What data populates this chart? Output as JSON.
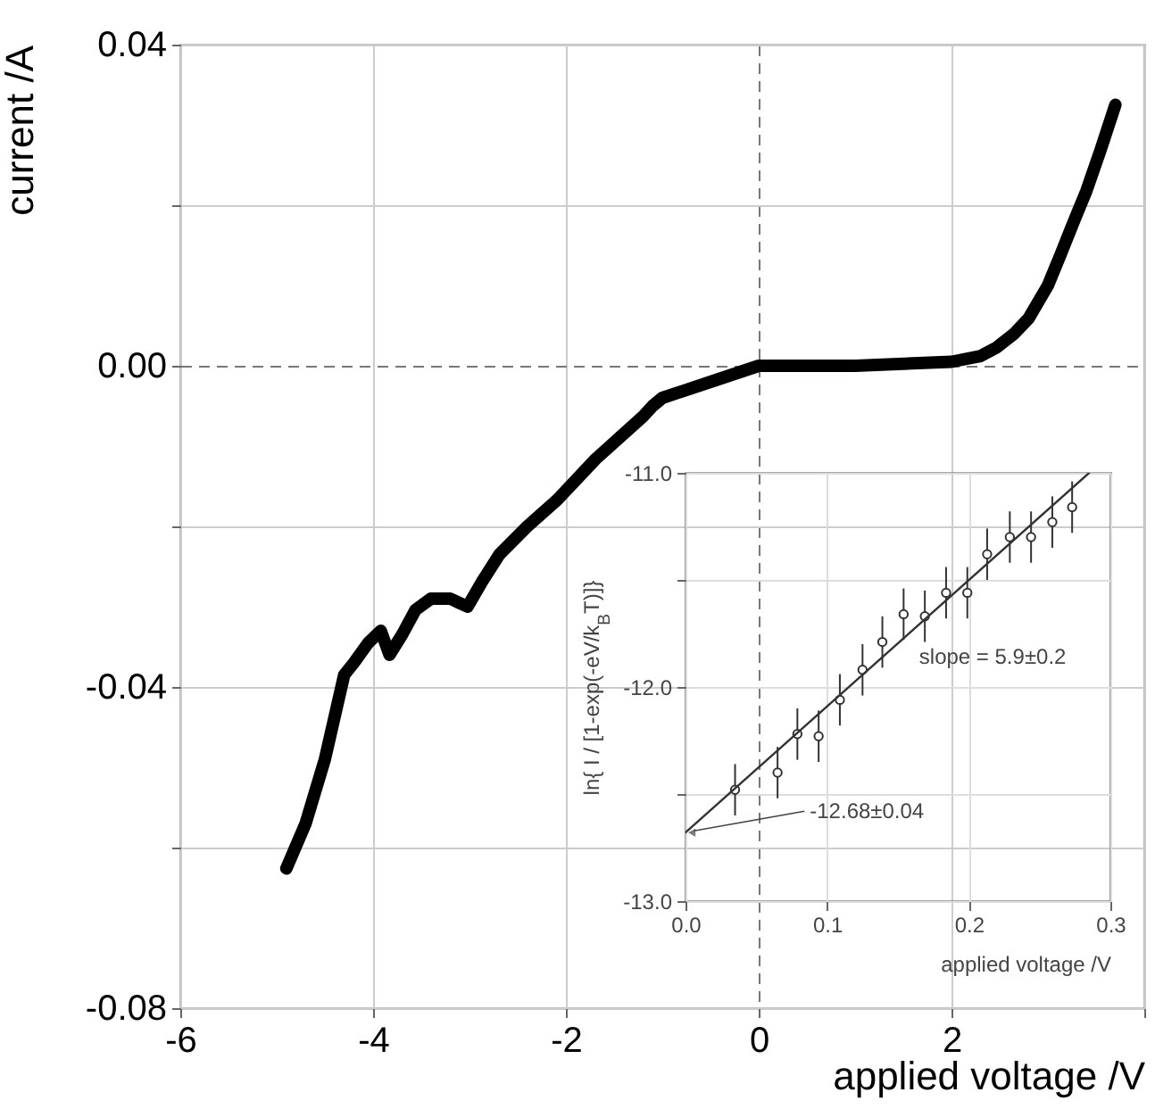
{
  "chart_data": [
    {
      "type": "line",
      "xlabel": "applied voltage /V",
      "ylabel": "current /A",
      "xlim": [
        -6,
        4
      ],
      "xticks": [
        -6,
        -4,
        -2,
        0,
        2,
        {
          "value": 4,
          "label": null
        }
      ],
      "ylim": [
        -0.08,
        0.04
      ],
      "yticks": [
        {
          "value": -0.08,
          "label": "-0.08"
        },
        {
          "value": -0.06,
          "label": null
        },
        {
          "value": -0.04,
          "label": "-0.04"
        },
        {
          "value": -0.02,
          "label": null
        },
        {
          "value": 0,
          "label": "0.00"
        },
        {
          "value": 0.02,
          "label": null
        },
        {
          "value": 0.04,
          "label": "0.04"
        }
      ],
      "grid": true,
      "x": [
        -4.9,
        -4.7,
        -4.5,
        -4.3,
        -4.2,
        -4.05,
        -3.92,
        -3.83,
        -3.7,
        -3.56,
        -3.4,
        -3.2,
        -3.02,
        -2.87,
        -2.69,
        -2.4,
        -2.09,
        -1.69,
        -1.2,
        -1.1,
        -1.0,
        -0.5,
        0,
        1,
        2,
        2.3,
        2.47,
        2.65,
        2.8,
        3.0,
        3.13,
        3.27,
        3.4,
        3.55,
        3.7
      ],
      "series": [
        {
          "color": "#000000",
          "values": [
            -0.0626,
            -0.057,
            -0.049,
            -0.0385,
            -0.037,
            -0.0345,
            -0.033,
            -0.036,
            -0.0335,
            -0.0304,
            -0.029,
            -0.029,
            -0.03,
            -0.0269,
            -0.0235,
            -0.02,
            -0.0167,
            -0.0116,
            -0.0063,
            -0.005,
            -0.004,
            -0.002,
            0,
            0,
            0.0005,
            0.0012,
            0.0023,
            0.004,
            0.0059,
            0.01,
            0.0138,
            0.018,
            0.0218,
            0.027,
            0.0325
          ]
        }
      ]
    },
    {
      "type": "scatter",
      "xlabel": "applied voltage /V",
      "ylabel": "ln{ I / [1-exp(-eV/k$_{B}$T)]}",
      "xlim": [
        0,
        0.3
      ],
      "xticks": [
        {
          "value": 0,
          "label": "0.0"
        },
        {
          "value": 0.1,
          "label": "0.1"
        },
        {
          "value": 0.2,
          "label": "0.2"
        },
        {
          "value": 0.3,
          "label": "0.3"
        }
      ],
      "ylim": [
        -13,
        -11
      ],
      "yticks": [
        {
          "value": -13,
          "label": "-13.0"
        },
        {
          "value": -12.5,
          "label": null
        },
        {
          "value": -12,
          "label": "-12.0"
        },
        {
          "value": -11.5,
          "label": null
        },
        {
          "value": -11,
          "label": "-11.0"
        }
      ],
      "grid": true,
      "annotations": [
        "slope = 5.9±0.2",
        {
          "text": "-12.68±0.04",
          "x": 0,
          "y": -12.68
        }
      ],
      "x": [
        0.035,
        0.065,
        0.079,
        0.094,
        0.109,
        0.125,
        0.139,
        0.154,
        0.169,
        0.184,
        0.199,
        0.213,
        0.229,
        0.244,
        0.259,
        0.273
      ],
      "series": [
        {
          "marker": "circle",
          "color": "#333333",
          "values": [
            -12.48,
            -12.4,
            -12.22,
            -12.23,
            -12.06,
            -11.92,
            -11.79,
            -11.66,
            -11.67,
            -11.56,
            -11.56,
            -11.38,
            -11.3,
            -11.3,
            -11.23,
            -11.16
          ],
          "errors": [
            0.12,
            0.12,
            0.12,
            0.12,
            0.12,
            0.12,
            0.12,
            0.12,
            0.12,
            0.12,
            0.12,
            0.12,
            0.12,
            0.12,
            0.12,
            0.12
          ]
        },
        {
          "type": "line",
          "color": "#333333",
          "x": [
            0,
            0.285
          ],
          "values": [
            -12.68,
            -11.0
          ]
        }
      ]
    }
  ]
}
